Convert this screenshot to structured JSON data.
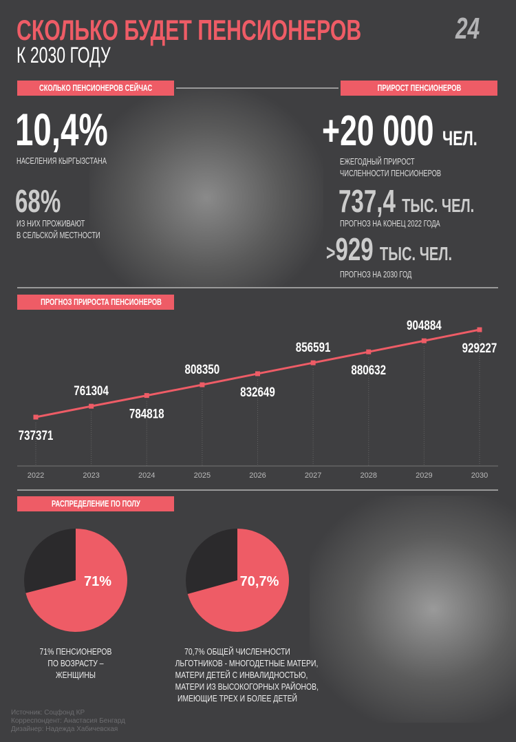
{
  "header": {
    "title": "СКОЛЬКО БУДЕТ ПЕНСИОНЕРОВ",
    "subtitle": "К 2030 ГОДУ",
    "logo": "24 KG"
  },
  "now": {
    "tag": "СКОЛЬКО ПЕНСИОНЕРОВ СЕЙЧАС",
    "stat1": "10,4%",
    "stat1_label": "НАСЕЛЕНИЯ КЫРГЫЗСТАНА",
    "stat2": "68%",
    "stat2_label_1": "ИЗ НИХ ПРОЖИВАЮТ",
    "stat2_label_2": "В СЕЛЬСКОЙ МЕСТНОСТИ"
  },
  "growth": {
    "tag": "ПРИРОСТ ПЕНСИОНЕРОВ",
    "stat1": "+20 000",
    "stat1_unit": "ЧЕЛ.",
    "stat1_label_1": "ЕЖЕГОДНЫЙ ПРИРОСТ",
    "stat1_label_2": "ЧИСЛЕННОСТИ ПЕНСИОНЕРОВ",
    "stat2": "737,4",
    "stat2_unit": "ТЫС. ЧЕЛ.",
    "stat2_label": "ПРОГНОЗ НА КОНЕЦ 2022 ГОДА",
    "stat3_prefix": ">",
    "stat3": "929",
    "stat3_unit": "ТЫС. ЧЕЛ.",
    "stat3_label": "ПРОГНОЗ НА 2030 ГОД"
  },
  "colors": {
    "accent": "#ee5c66",
    "background": "#3f3f41",
    "pie_dark": "#2b2a2c"
  },
  "chart_data": [
    {
      "type": "line",
      "title": "ПРОГНОЗ ПРИРОСТА ПЕНСИОНЕРОВ",
      "categories": [
        "2022",
        "2023",
        "2024",
        "2025",
        "2026",
        "2027",
        "2028",
        "2029",
        "2030"
      ],
      "values": [
        737371,
        761304,
        784818,
        808350,
        832649,
        856591,
        880632,
        904884,
        929227
      ],
      "labels": [
        "737371",
        "761304",
        "784818",
        "808350",
        "832649",
        "856591",
        "880632",
        "904884",
        "929227"
      ]
    },
    {
      "type": "pie",
      "title": "РАСПРЕДЕЛЕНИЕ ПО ПОЛУ",
      "values": [
        71,
        29
      ],
      "label": "71%",
      "caption": [
        "71% ПЕНСИОНЕРОВ",
        "ПО ВОЗРАСТУ –",
        "ЖЕНЩИНЫ"
      ]
    },
    {
      "type": "pie",
      "values": [
        70.7,
        29.3
      ],
      "label": "70,7%",
      "caption": [
        "70,7% ОБЩЕЙ ЧИСЛЕННОСТИ",
        "ЛЬГОТНИКОВ - МНОГОДЕТНЫЕ МАТЕРИ,",
        "МАТЕРИ ДЕТЕЙ С ИНВАЛИДНОСТЬЮ,",
        "МАТЕРИ ИЗ ВЫСОКОГОРНЫХ РАЙОНОВ,",
        "ИМЕЮЩИЕ ТРЕХ И БОЛЕЕ ДЕТЕЙ"
      ]
    }
  ],
  "credits": [
    "Источник: Соцфонд КР",
    "Корреспондент: Анастасия Бенгард",
    "Дизайнер: Надежда Хабичевская"
  ]
}
